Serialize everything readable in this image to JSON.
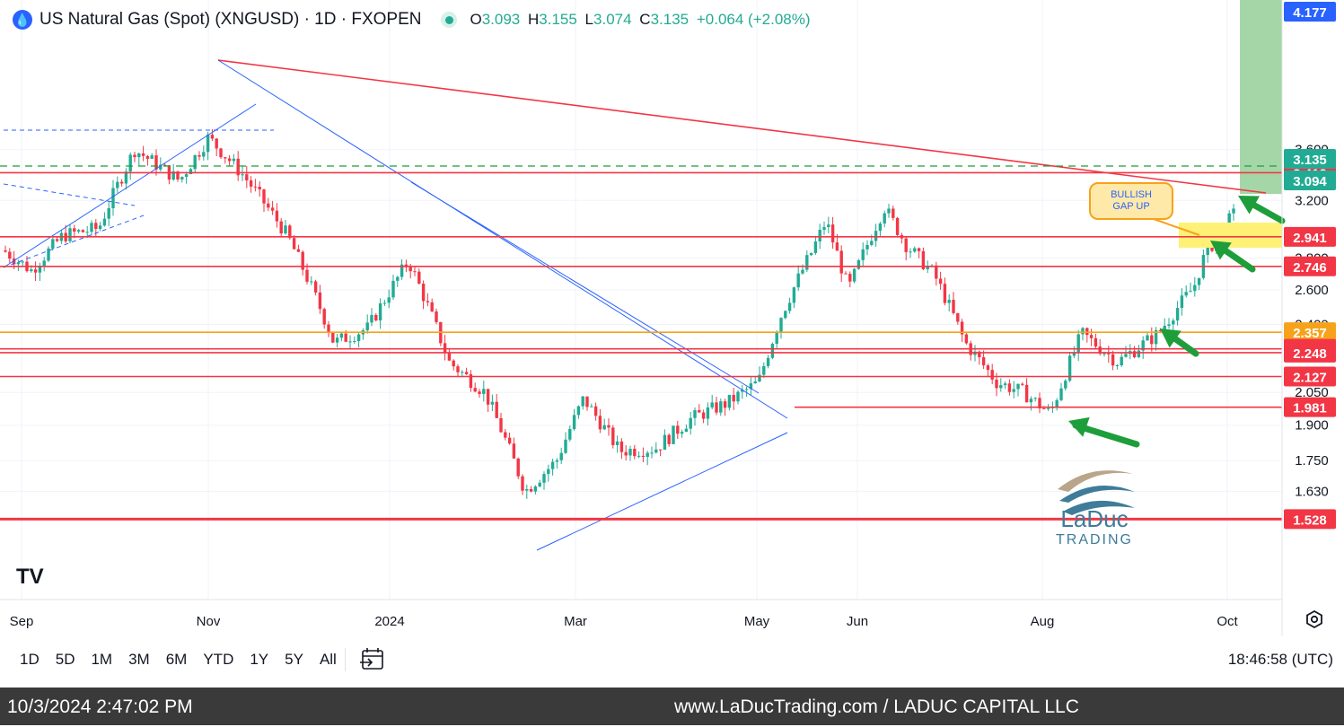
{
  "header": {
    "logo_glyph": "💧",
    "title": "US Natural Gas (Spot) (XNGUSD) · 1D · FXOPEN",
    "ohlc": {
      "o_label": "O",
      "o": "3.093",
      "h_label": "H",
      "h": "3.155",
      "l_label": "L",
      "l": "3.074",
      "c_label": "C",
      "c": "3.135",
      "change": "+0.064 (+2.08%)"
    }
  },
  "colors": {
    "up": "#22ab94",
    "down": "#f23645",
    "resistance": "#f23645",
    "support_orange": "#f7a21b",
    "trend_blue": "#2962ff",
    "arrow_green": "#1e9e3a"
  },
  "chart_data": {
    "type": "candlestick",
    "y_axis_ticks": [
      "3.600",
      "3.200",
      "2.800",
      "2.600",
      "2.400",
      "2.050",
      "1.900",
      "1.750",
      "1.630"
    ],
    "x_axis_labels": [
      "Sep",
      "Nov",
      "2024",
      "Mar",
      "May",
      "Jun",
      "Aug",
      "Oct"
    ],
    "horizontal_levels": [
      {
        "label": "3.412",
        "value": 3.412,
        "color": "#f23645"
      },
      {
        "label": "2.941",
        "value": 2.941,
        "color": "#f23645"
      },
      {
        "label": "2.746",
        "value": 2.746,
        "color": "#f23645"
      },
      {
        "label": "2.357",
        "value": 2.357,
        "color": "#f7a21b"
      },
      {
        "label": "2.268",
        "value": 2.268,
        "color": "#f23645"
      },
      {
        "label": "2.248",
        "value": 2.248,
        "color": "#f23645"
      },
      {
        "label": "2.127",
        "value": 2.127,
        "color": "#f23645"
      },
      {
        "label": "1.981",
        "value": 1.981,
        "color": "#f23645"
      },
      {
        "label": "1.528",
        "value": 1.528,
        "color": "#f23645"
      }
    ],
    "price_badges": [
      {
        "label": "4.177",
        "value": 4.177,
        "color": "#2962ff"
      },
      {
        "label": "3.135",
        "value": 3.135,
        "color": "#22ab94"
      },
      {
        "label": "3.094",
        "value": 3.094,
        "color": "#22ab94"
      }
    ],
    "annotation": "BULLISH\nGAP UP",
    "watermark": {
      "line1": "LaDuc",
      "line2": "TRADING"
    }
  },
  "time_ranges": [
    "1D",
    "5D",
    "1M",
    "3M",
    "6M",
    "YTD",
    "1Y",
    "5Y",
    "All"
  ],
  "clock": "18:46:58 (UTC)",
  "footer": {
    "timestamp": "10/3/2024 2:47:02 PM",
    "site": "www.LaDucTrading.com / LADUC CAPITAL LLC"
  },
  "tv_logo": "TV"
}
